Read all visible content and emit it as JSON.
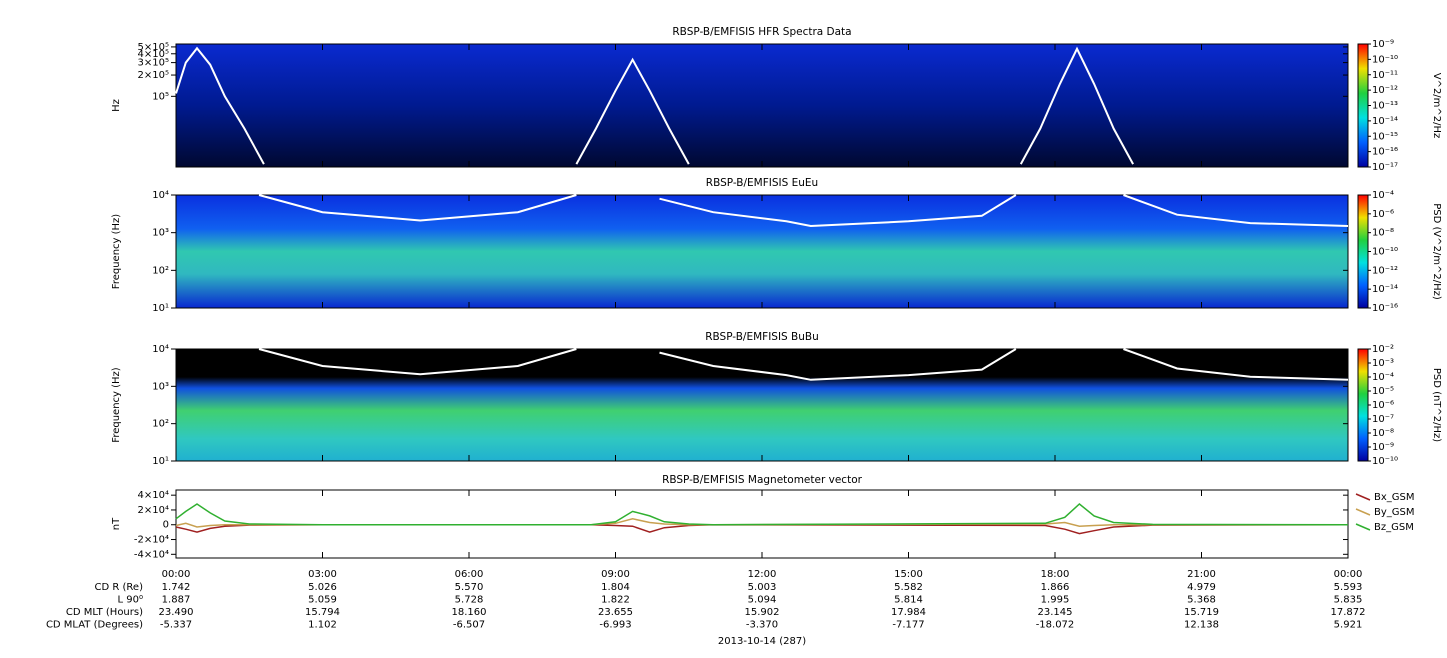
{
  "chart_data": [
    {
      "type": "spectrogram",
      "title": "RBSP-B/EMFISIS  HFR Spectra Data",
      "ylabel": "Hz",
      "log": true,
      "xlim": [
        0,
        24
      ],
      "ylim": [
        10000,
        550000
      ],
      "yticks": [
        {
          "value": 100000,
          "label": "10⁵"
        },
        {
          "value": 200000,
          "label": "2×10⁵"
        },
        {
          "value": 300000,
          "label": "3×10⁵"
        },
        {
          "value": 400000,
          "label": "4×10⁵"
        },
        {
          "value": 500000,
          "label": "5×10⁵"
        }
      ],
      "zlabel": "V^2/m^2/Hz",
      "zlim": [
        1e-17,
        1e-09
      ],
      "zticks": [
        {
          "value": 1e-17,
          "label": "10⁻¹⁷"
        },
        {
          "value": 1e-16,
          "label": "10⁻¹⁶"
        },
        {
          "value": 1e-15,
          "label": "10⁻¹⁵"
        },
        {
          "value": 1e-14,
          "label": "10⁻¹⁴"
        },
        {
          "value": 1e-13,
          "label": "10⁻¹³"
        },
        {
          "value": 1e-12,
          "label": "10⁻¹²"
        },
        {
          "value": 1e-11,
          "label": "10⁻¹¹"
        },
        {
          "value": 1e-10,
          "label": "10⁻¹⁰"
        },
        {
          "value": 1e-09,
          "label": "10⁻⁹"
        }
      ],
      "lines": [
        {
          "color": "#ffffff",
          "x": [
            0,
            0.2,
            0.43,
            0.7,
            1.0,
            1.4,
            1.8,
            2,
            8.2,
            8.6,
            9.0,
            9.35,
            9.7,
            10.1,
            10.5,
            12,
            17.3,
            17.7,
            18.1,
            18.45,
            18.8,
            19.2,
            19.6
          ],
          "values": [
            110000,
            300000,
            480000,
            280000,
            100000,
            35000,
            11000,
            null,
            11000,
            35000,
            120000,
            330000,
            120000,
            35000,
            11000,
            null,
            11000,
            35000,
            150000,
            470000,
            150000,
            35000,
            11000
          ]
        }
      ]
    },
    {
      "type": "spectrogram",
      "title": "RBSP-B/EMFISIS  EuEu",
      "ylabel": "Frequency (Hz)",
      "log": true,
      "xlim": [
        0,
        24
      ],
      "ylim": [
        10,
        10000
      ],
      "yticks": [
        {
          "value": 10,
          "label": "10¹"
        },
        {
          "value": 100,
          "label": "10²"
        },
        {
          "value": 1000,
          "label": "10³"
        },
        {
          "value": 10000,
          "label": "10⁴"
        }
      ],
      "zlabel": "PSD (V^2/m^2/Hz)",
      "zlim": [
        1e-16,
        0.0001
      ],
      "zticks": [
        {
          "value": 1e-16,
          "label": "10⁻¹⁶"
        },
        {
          "value": 1e-14,
          "label": "10⁻¹⁴"
        },
        {
          "value": 1e-12,
          "label": "10⁻¹²"
        },
        {
          "value": 1e-10,
          "label": "10⁻¹⁰"
        },
        {
          "value": 1e-08,
          "label": "10⁻⁸"
        },
        {
          "value": 1e-06,
          "label": "10⁻⁶"
        },
        {
          "value": 0.0001,
          "label": "10⁻⁴"
        }
      ],
      "lines": [
        {
          "color": "#ffffff",
          "x": [
            1.7,
            3,
            5,
            7,
            8.2,
            9,
            9.9,
            11,
            12.5,
            13,
            15,
            16.5,
            17.2,
            18.3,
            19.4,
            20.5,
            22,
            24
          ],
          "values": [
            10000,
            3500,
            2100,
            3500,
            10000,
            null,
            8000,
            3500,
            2000,
            1500,
            2000,
            2800,
            10000,
            null,
            10000,
            3000,
            1800,
            1500
          ]
        }
      ]
    },
    {
      "type": "spectrogram",
      "title": "RBSP-B/EMFISIS  BuBu",
      "ylabel": "Frequency (Hz)",
      "log": true,
      "xlim": [
        0,
        24
      ],
      "ylim": [
        10,
        10000
      ],
      "yticks": [
        {
          "value": 10,
          "label": "10¹"
        },
        {
          "value": 100,
          "label": "10²"
        },
        {
          "value": 1000,
          "label": "10³"
        },
        {
          "value": 10000,
          "label": "10⁴"
        }
      ],
      "zlabel": "PSD (nT^2/Hz)",
      "zlim": [
        1e-10,
        0.01
      ],
      "zticks": [
        {
          "value": 1e-10,
          "label": "10⁻¹⁰"
        },
        {
          "value": 1e-09,
          "label": "10⁻⁹"
        },
        {
          "value": 1e-08,
          "label": "10⁻⁸"
        },
        {
          "value": 1e-07,
          "label": "10⁻⁷"
        },
        {
          "value": 1e-06,
          "label": "10⁻⁶"
        },
        {
          "value": 1e-05,
          "label": "10⁻⁵"
        },
        {
          "value": 0.0001,
          "label": "10⁻⁴"
        },
        {
          "value": 0.001,
          "label": "10⁻³"
        },
        {
          "value": 0.01,
          "label": "10⁻²"
        }
      ],
      "lines": [
        {
          "color": "#ffffff",
          "x": [
            1.7,
            3,
            5,
            7,
            8.2,
            9,
            9.9,
            11,
            12.5,
            13,
            15,
            16.5,
            17.2,
            18.3,
            19.4,
            20.5,
            22,
            24
          ],
          "values": [
            10000,
            3500,
            2100,
            3500,
            10000,
            null,
            8000,
            3500,
            2000,
            1500,
            2000,
            2800,
            10000,
            null,
            10000,
            3000,
            1800,
            1500
          ]
        }
      ]
    },
    {
      "type": "line",
      "title": "RBSP-B/EMFISIS  Magnetometer vector",
      "ylabel": "nT",
      "xlim": [
        0,
        24
      ],
      "ylim": [
        -45000,
        47000
      ],
      "yticks": [
        {
          "value": -40000,
          "label": "-4×10⁴"
        },
        {
          "value": -20000,
          "label": "-2×10⁴"
        },
        0,
        {
          "value": 20000,
          "label": "2×10⁴"
        },
        {
          "value": 40000,
          "label": "4×10⁴"
        }
      ],
      "xticks": [
        {
          "value": 0,
          "label": "00:00"
        },
        {
          "value": 3,
          "label": "03:00"
        },
        {
          "value": 6,
          "label": "06:00"
        },
        {
          "value": 9,
          "label": "09:00"
        },
        {
          "value": 12,
          "label": "12:00"
        },
        {
          "value": 15,
          "label": "15:00"
        },
        {
          "value": 18,
          "label": "18:00"
        },
        {
          "value": 21,
          "label": "21:00"
        },
        {
          "value": 24,
          "label": "00:00"
        }
      ],
      "x": [
        0,
        0.2,
        0.43,
        0.7,
        1,
        1.5,
        3,
        8.5,
        9,
        9.35,
        9.7,
        10,
        10.5,
        11,
        17.8,
        18.2,
        18.5,
        18.8,
        19.2,
        20,
        24
      ],
      "series": [
        {
          "name": "Bx_GSM",
          "color": "#a02020",
          "values": [
            -3000,
            -6000,
            -10000,
            -5000,
            -2000,
            -500,
            0,
            0,
            -1000,
            -2000,
            -10000,
            -4000,
            -1000,
            0,
            -1000,
            -6000,
            -12000,
            -8000,
            -3000,
            -500,
            0
          ]
        },
        {
          "name": "By_GSM",
          "color": "#c8a050",
          "values": [
            -1000,
            2000,
            -3000,
            -1000,
            0,
            0,
            0,
            0,
            2000,
            8000,
            3000,
            1000,
            0,
            0,
            1000,
            3000,
            -2000,
            -1000,
            0,
            0,
            0
          ]
        },
        {
          "name": "Bz_GSM",
          "color": "#30b030",
          "values": [
            8000,
            18000,
            28000,
            16000,
            5000,
            1000,
            0,
            0,
            4000,
            18000,
            12000,
            4000,
            1000,
            0,
            2000,
            10000,
            28000,
            12000,
            3000,
            500,
            0
          ]
        }
      ]
    }
  ],
  "ephemeris": {
    "rows": [
      {
        "label": "CD R (Re)",
        "values": [
          "1.742",
          "5.026",
          "5.570",
          "1.804",
          "5.003",
          "5.582",
          "1.866",
          "4.979",
          "5.593"
        ]
      },
      {
        "label": "L 90⁰",
        "values": [
          "1.887",
          "5.059",
          "5.728",
          "1.822",
          "5.094",
          "5.814",
          "1.995",
          "5.368",
          "5.835"
        ]
      },
      {
        "label": "CD MLT (Hours)",
        "values": [
          "23.490",
          "15.794",
          "18.160",
          "23.655",
          "15.902",
          "17.984",
          "23.145",
          "15.719",
          "17.872"
        ]
      },
      {
        "label": "CD MLAT (Degrees)",
        "values": [
          "-5.337",
          "1.102",
          "-6.507",
          "-6.993",
          "-3.370",
          "-7.177",
          "-18.072",
          "12.138",
          "5.921"
        ]
      }
    ],
    "date": "2013-10-14 (287)"
  }
}
